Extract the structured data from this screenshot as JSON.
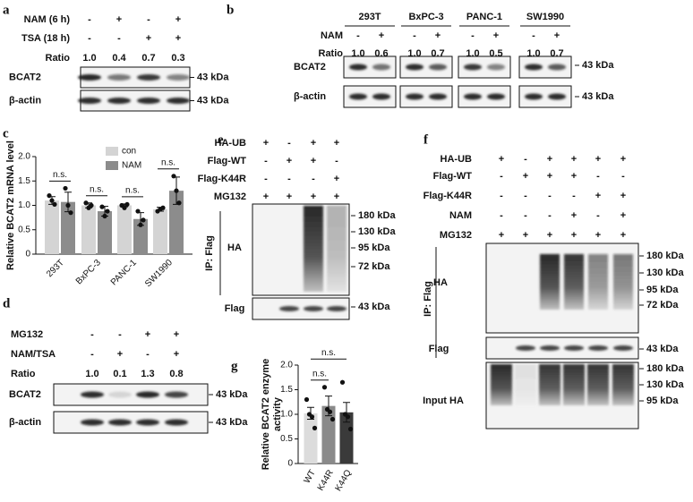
{
  "panels": {
    "a": {
      "label": "a",
      "rows": [
        {
          "name": "NAM (6 h)",
          "entries": [
            "-",
            "+",
            "-",
            "+"
          ]
        },
        {
          "name": "TSA (18 h)",
          "entries": [
            "-",
            "-",
            "+",
            "+"
          ]
        },
        {
          "name": "Ratio",
          "entries": [
            "1.0",
            "0.4",
            "0.7",
            "0.3"
          ]
        }
      ],
      "blots": [
        {
          "name": "BCAT2",
          "markers": [
            "43 kDa"
          ]
        },
        {
          "name": "β-actin",
          "markers": [
            "43 kDa"
          ]
        }
      ]
    },
    "b": {
      "label": "b",
      "row_labels": [
        "NAM",
        "Ratio"
      ],
      "cells": [
        {
          "name": "293T",
          "entries": [
            [
              "-",
              "+"
            ],
            [
              "1.0",
              "0.6"
            ]
          ]
        },
        {
          "name": "BxPC-3",
          "entries": [
            [
              "-",
              "+"
            ],
            [
              "1.0",
              "0.7"
            ]
          ]
        },
        {
          "name": "PANC-1",
          "entries": [
            [
              "-",
              "+"
            ],
            [
              "1.0",
              "0.5"
            ]
          ]
        },
        {
          "name": "SW1990",
          "entries": [
            [
              "-",
              "+"
            ],
            [
              "1.0",
              "0.7"
            ]
          ]
        }
      ],
      "blots": [
        {
          "name": "BCAT2",
          "markers": [
            "43 kDa"
          ]
        },
        {
          "name": "β-actin",
          "markers": [
            "43 kDa"
          ]
        }
      ]
    },
    "d": {
      "label": "d",
      "rows": [
        {
          "name": "MG132",
          "entries": [
            "-",
            "-",
            "+",
            "+"
          ]
        },
        {
          "name": "NAM/TSA",
          "entries": [
            "-",
            "+",
            "-",
            "+"
          ]
        },
        {
          "name": "Ratio",
          "entries": [
            "1.0",
            "0.1",
            "1.3",
            "0.8"
          ]
        }
      ],
      "blots": [
        {
          "name": "BCAT2",
          "markers": [
            "43 kDa"
          ]
        },
        {
          "name": "β-actin",
          "markers": [
            "43 kDa"
          ]
        }
      ]
    },
    "e": {
      "label": "e",
      "rows": [
        {
          "name": "HA-UB",
          "entries": [
            "+",
            "-",
            "+",
            "+"
          ]
        },
        {
          "name": "Flag-WT",
          "entries": [
            "-",
            "+",
            "+",
            "-"
          ]
        },
        {
          "name": "Flag-K44R",
          "entries": [
            "-",
            "-",
            "-",
            "+"
          ]
        },
        {
          "name": "MG132",
          "entries": [
            "+",
            "+",
            "+",
            "+"
          ]
        }
      ],
      "ip": "IP: Flag",
      "blots": [
        {
          "name": "HA",
          "markers": [
            "180 kDa",
            "130 kDa",
            "95 kDa",
            "72 kDa"
          ]
        },
        {
          "name": "Flag",
          "markers": [
            "43 kDa"
          ]
        }
      ]
    },
    "f": {
      "label": "f",
      "rows": [
        {
          "name": "HA-UB",
          "entries": [
            "+",
            "-",
            "+",
            "+",
            "+",
            "+"
          ]
        },
        {
          "name": "Flag-WT",
          "entries": [
            "-",
            "+",
            "+",
            "+",
            "-",
            "-"
          ]
        },
        {
          "name": "Flag-K44R",
          "entries": [
            "-",
            "-",
            "-",
            "-",
            "+",
            "+"
          ]
        },
        {
          "name": "NAM",
          "entries": [
            "-",
            "-",
            "-",
            "+",
            "-",
            "+"
          ]
        },
        {
          "name": "MG132",
          "entries": [
            "+",
            "+",
            "+",
            "+",
            "+",
            "+"
          ]
        }
      ],
      "ip": "IP: Flag",
      "blots": [
        {
          "name": "HA",
          "markers": [
            "180 kDa",
            "130 kDa",
            "95 kDa",
            "72 kDa"
          ]
        },
        {
          "name": "Flag",
          "markers": [
            "43 kDa"
          ]
        },
        {
          "name": "Input HA",
          "markers": [
            "180 kDa",
            "130 kDa",
            "95 kDa"
          ]
        }
      ]
    }
  },
  "chart_data": [
    {
      "type": "bar",
      "label": "c",
      "y_label": [
        "Relative BCAT2 mRNA level"
      ],
      "categories": [
        "293T",
        "BxPC-3",
        "PANC-1",
        "SW1990"
      ],
      "series": [
        {
          "name": "con",
          "color": "#d4d4d4",
          "values": [
            1.1,
            1.0,
            1.0,
            0.92
          ],
          "errors": [
            0.08,
            0.05,
            0.03,
            0.04
          ],
          "points": [
            [
              1.2,
              1.1,
              1.02
            ],
            [
              1.05,
              0.95,
              1.0
            ],
            [
              1.0,
              0.95,
              1.02
            ],
            [
              0.88,
              0.92,
              0.95
            ]
          ]
        },
        {
          "name": "NAM",
          "color": "#8c8c8c",
          "values": [
            1.07,
            0.88,
            0.72,
            1.3
          ],
          "errors": [
            0.2,
            0.1,
            0.13,
            0.28
          ],
          "points": [
            [
              1.35,
              1.0,
              0.85
            ],
            [
              0.97,
              0.78,
              0.88
            ],
            [
              0.88,
              0.6,
              0.7
            ],
            [
              1.6,
              1.3,
              1.05
            ]
          ]
        }
      ],
      "annotations": [
        "n.s.",
        "n.s.",
        "n.s.",
        "n.s."
      ],
      "ylim": [
        0,
        2
      ],
      "yticks": [
        0,
        0.5,
        {
          "value": 1,
          "label": "1.0"
        },
        1.5,
        {
          "value": 2,
          "label": "2.0"
        }
      ]
    },
    {
      "type": "bar",
      "label": "g",
      "y_label": [
        "Relative BCAT2 enzyme",
        "activity"
      ],
      "categories": [
        "WT",
        "K44R",
        "K44Q"
      ],
      "series": [
        {
          "colors": [
            "#dcdcdc",
            "#8a8a8a",
            "#3a3a3a"
          ],
          "values": [
            1.02,
            1.17,
            1.04
          ],
          "errors": [
            0.12,
            0.2,
            0.2
          ],
          "points": [
            [
              1.3,
              1.0,
              0.95,
              0.72
            ],
            [
              1.55,
              1.1,
              1.05,
              0.9
            ],
            [
              1.65,
              1.0,
              0.95,
              0.7
            ]
          ]
        }
      ],
      "annotations": [
        "n.s.",
        "n.s."
      ],
      "ylim": [
        0,
        2
      ],
      "yticks": [
        0,
        0.5,
        {
          "value": 1,
          "label": "1.0"
        },
        1.5,
        {
          "value": 2,
          "label": "2.0"
        }
      ]
    }
  ]
}
